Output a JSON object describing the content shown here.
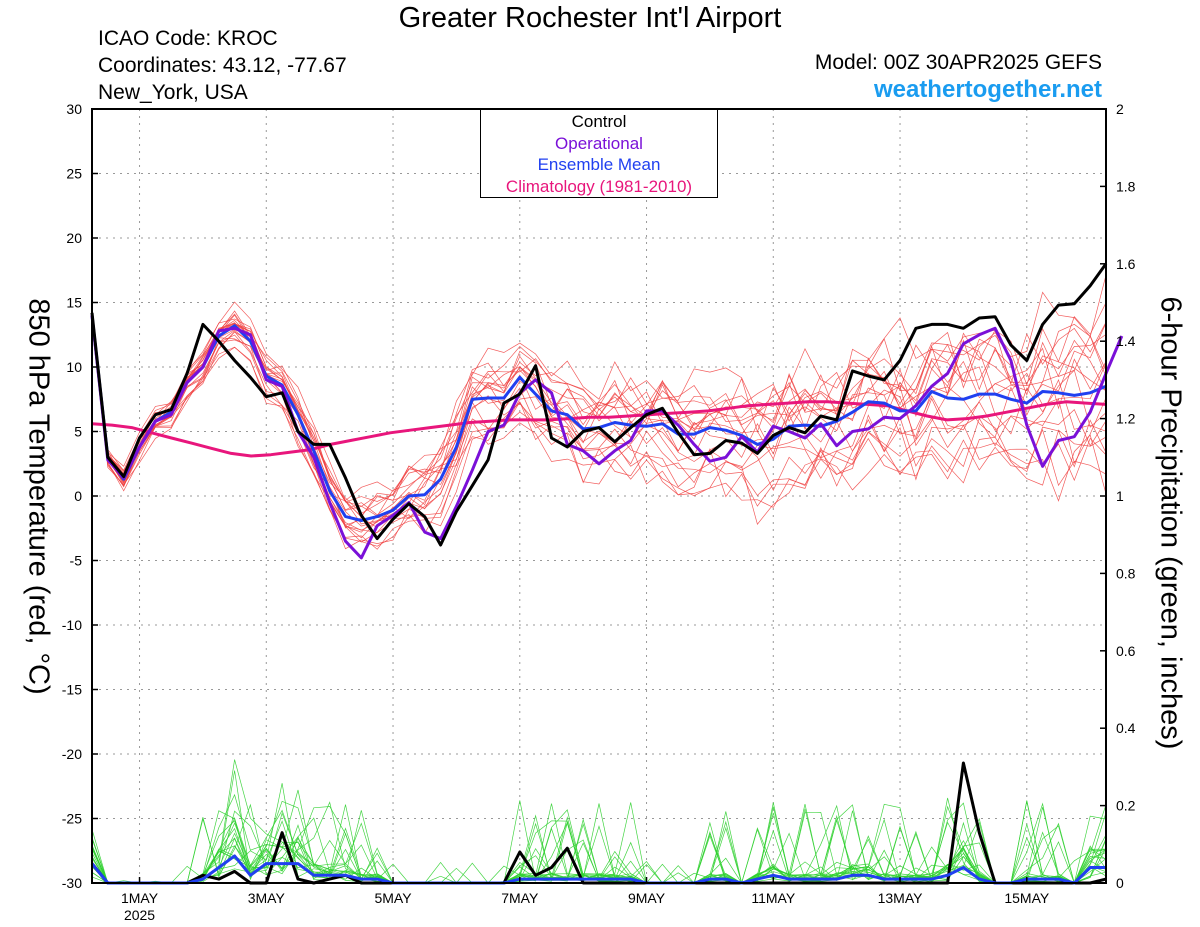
{
  "header": {
    "title": "Greater Rochester Int'l Airport",
    "icao": "ICAO Code: KROC",
    "coordinates": "Coordinates: 43.12, -77.67",
    "location": "New_York, USA",
    "model": "Model: 00Z 30APR2025 GEFS",
    "site": "weathertogether.net"
  },
  "chart_data": {
    "type": "line",
    "ylabel_left": "850 hPa Temperature (red, °C)",
    "ylabel_right": "6-hour Precipitation (green, inches)",
    "y_left_range": [
      -30,
      30
    ],
    "y_right_range": [
      0,
      2
    ],
    "x_range_hours": [
      0,
      384
    ],
    "x_ticks": [
      {
        "hour": 18,
        "label": "1MAY",
        "sub": "2025"
      },
      {
        "hour": 66,
        "label": "3MAY"
      },
      {
        "hour": 114,
        "label": "5MAY"
      },
      {
        "hour": 162,
        "label": "7MAY"
      },
      {
        "hour": 210,
        "label": "9MAY"
      },
      {
        "hour": 258,
        "label": "11MAY"
      },
      {
        "hour": 306,
        "label": "13MAY"
      },
      {
        "hour": 354,
        "label": "15MAY"
      }
    ],
    "y_left_ticks": [
      30,
      25,
      20,
      15,
      10,
      5,
      0,
      -5,
      -10,
      -15,
      -20,
      -25,
      -30
    ],
    "y_right_ticks": [
      2,
      1.8,
      1.6,
      1.4,
      1.2,
      1,
      0.8,
      0.6,
      0.4,
      0.2,
      0
    ],
    "legend": [
      "Control",
      "Operational",
      "Ensemble Mean",
      "Climatology (1981-2010)"
    ],
    "colors": {
      "control": "#000000",
      "operational": "#7a10d8",
      "ensemble_mean": "#2040f0",
      "climatology": "#e8167c",
      "members_temp": "#f04040",
      "members_precip": "#30d030",
      "grid": "#999999"
    },
    "series": [
      {
        "name": "Control",
        "kind": "temperature",
        "values": [
          14.2,
          3,
          1.5,
          4.5,
          6.3,
          6.7,
          9.5,
          13.3,
          12,
          10.5,
          9.2,
          7.7,
          8,
          5,
          4,
          4,
          1.4,
          -1.5,
          -3.3,
          -1.8,
          -0.6,
          -1.6,
          -3.8,
          -1.2,
          0.8,
          2.8,
          7.2,
          7.9,
          10.1,
          4.5,
          3.8,
          5,
          5.3,
          4.2,
          5.3,
          6.3,
          6.8,
          4.9,
          3.2,
          3.3,
          4.3,
          4.1,
          3.3,
          4.7,
          5.3,
          4.9,
          6.2,
          5.9,
          9.7,
          9.3,
          9,
          10.5,
          13,
          13.3,
          13.3,
          13,
          13.8,
          13.9,
          11.7,
          10.5,
          13.3,
          14.8,
          14.9,
          16.3,
          18
        ]
      },
      {
        "name": "Operational",
        "kind": "temperature",
        "values": [
          14,
          2.8,
          1.4,
          3.8,
          5.8,
          6.3,
          8.8,
          10,
          12.8,
          13,
          12.5,
          9,
          8.5,
          5,
          3,
          -0.5,
          -3.5,
          -4.8,
          -2.3,
          -1.5,
          -0.5,
          -2.8,
          -3.3,
          -0.8,
          2,
          5,
          5.5,
          8,
          9,
          8,
          4,
          3.5,
          2.5,
          3.5,
          4.3,
          6.6,
          6.6,
          5.5,
          4,
          2.7,
          3,
          4.6,
          3.4,
          5.4,
          5,
          4.5,
          5.6,
          3.9,
          5,
          5.2,
          6.1,
          6,
          7,
          8.5,
          9.5,
          11.8,
          12.5,
          13,
          10.5,
          5.5,
          2.3,
          4.3,
          4.6,
          6.5,
          9.5,
          12.4
        ]
      },
      {
        "name": "Ensemble Mean",
        "kind": "temperature",
        "values": [
          14,
          3,
          1.3,
          3.8,
          5.8,
          6.5,
          8.8,
          10,
          12.4,
          13.2,
          12,
          9.3,
          8.6,
          6.3,
          3.5,
          0.4,
          -1.6,
          -1.9,
          -1.6,
          -1.1,
          0,
          0.1,
          1.3,
          3.8,
          7.5,
          7.6,
          7.6,
          9.2,
          7.9,
          6.6,
          6.3,
          5.2,
          5.3,
          5.7,
          5.5,
          5.4,
          5.6,
          4.8,
          4.8,
          5.3,
          5.1,
          4.7,
          4,
          4.4,
          5.4,
          5.5,
          5.4,
          5.8,
          6.5,
          7.3,
          7.2,
          6.6,
          6.6,
          8.1,
          7.6,
          7.5,
          7.9,
          7.9,
          7.5,
          7.2,
          8.1,
          8,
          7.8,
          8,
          8.5
        ]
      },
      {
        "name": "Climatology (1981-2010)",
        "kind": "temperature",
        "values": [
          5.6,
          5.5,
          5.3,
          4.9,
          4.5,
          4.1,
          3.7,
          3.3,
          3.1,
          3.2,
          3.4,
          3.6,
          4,
          4.3,
          4.6,
          4.9,
          5.1,
          5.3,
          5.5,
          5.7,
          5.8,
          5.9,
          5.9,
          5.9,
          6,
          6.1,
          6.1,
          6.2,
          6.3,
          6.4,
          6.5,
          6.6,
          6.8,
          7,
          7.1,
          7.2,
          7.3,
          7.3,
          7.2,
          7.1,
          7,
          6.6,
          6.2,
          5.9,
          6,
          6.2,
          6.5,
          6.8,
          7.1,
          7.3,
          7.2,
          7.1
        ]
      },
      {
        "name": "Control",
        "kind": "precipitation",
        "values": [
          0.05,
          0,
          0,
          0,
          0,
          0,
          0,
          0.02,
          0.01,
          0.03,
          0,
          0,
          0.13,
          0.01,
          0,
          0.01,
          0.02,
          0,
          0,
          0,
          0,
          0,
          0,
          0,
          0,
          0,
          0,
          0.08,
          0.02,
          0.04,
          0.09,
          0,
          0,
          0,
          0,
          0,
          0,
          0,
          0,
          0,
          0,
          0,
          0,
          0,
          0,
          0,
          0,
          0,
          0,
          0,
          0,
          0,
          0,
          0,
          0,
          0.31,
          0.13,
          0,
          0,
          0,
          0,
          0,
          0,
          0,
          0.01
        ]
      },
      {
        "name": "Ensemble Mean",
        "kind": "precipitation",
        "values": [
          0.05,
          0,
          0,
          0,
          0,
          0,
          0,
          0.01,
          0.04,
          0.07,
          0.02,
          0.05,
          0.05,
          0.05,
          0.02,
          0.02,
          0.02,
          0.01,
          0.01,
          0,
          0,
          0,
          0,
          0,
          0,
          0,
          0,
          0.01,
          0.01,
          0.01,
          0.01,
          0.01,
          0.01,
          0.01,
          0.01,
          0,
          0,
          0,
          0,
          0.01,
          0.01,
          0,
          0.01,
          0.02,
          0.01,
          0.01,
          0.01,
          0.01,
          0.02,
          0.02,
          0.01,
          0.01,
          0.01,
          0.01,
          0.02,
          0.04,
          0.01,
          0,
          0,
          0.01,
          0.01,
          0.01,
          0,
          0.04,
          0.04
        ]
      }
    ]
  }
}
